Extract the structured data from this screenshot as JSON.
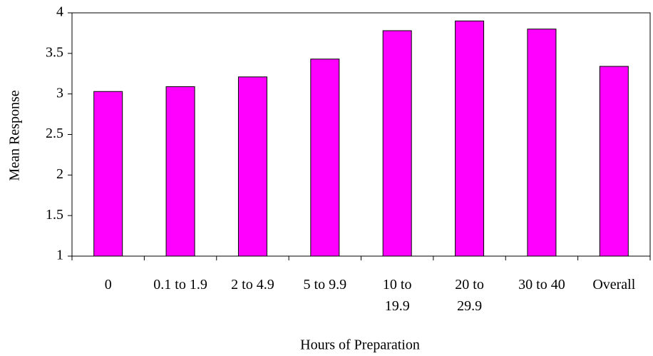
{
  "chart_data": {
    "type": "bar",
    "x_label": "Hours of Preparation",
    "y_label": "Mean Response",
    "categories": [
      "0",
      "0.1 to 1.9",
      "2 to 4.9",
      "5 to 9.9",
      "10 to 19.9",
      "20 to 29.9",
      "30 to 40",
      "Overall"
    ],
    "values": [
      3.03,
      3.09,
      3.21,
      3.43,
      3.78,
      3.9,
      3.8,
      3.34
    ],
    "color": "#ff00ff",
    "ylim": [
      1,
      4
    ],
    "yticks": [
      1,
      1.5,
      2,
      2.5,
      3,
      3.5,
      4
    ],
    "grid": false
  }
}
